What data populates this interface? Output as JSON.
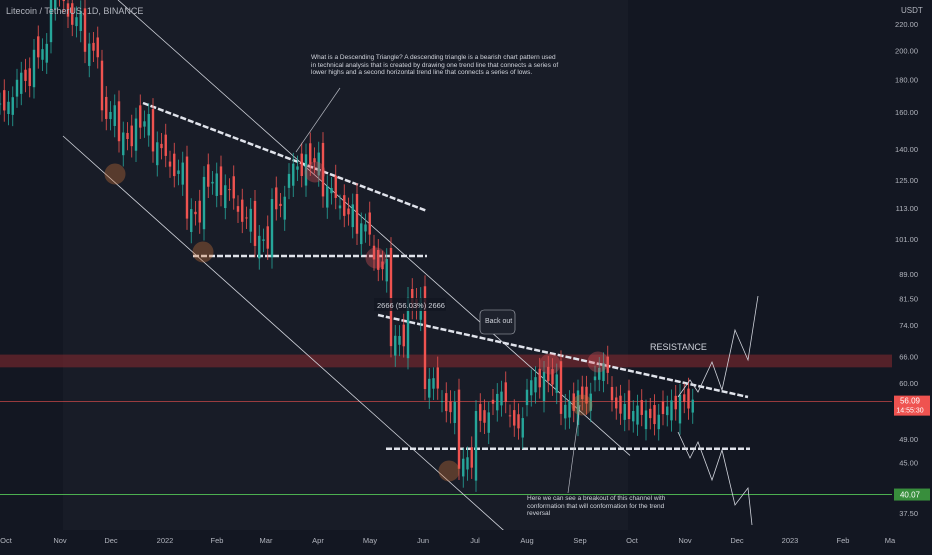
{
  "header": {
    "symbol_title": "Litecoin / TetherUS, 1D, BINANCE",
    "currency": "USDT"
  },
  "chart_data": {
    "type": "line",
    "title": "Litecoin / TetherUS, 1D, BINANCE",
    "xlabel": "",
    "ylabel": "USDT",
    "scale": "log",
    "ylim": [
      35.5,
      240
    ],
    "grid": false,
    "x_ticks": [
      "Oct",
      "Nov",
      "Dec",
      "2022",
      "Feb",
      "Mar",
      "Apr",
      "May",
      "Jun",
      "Jul",
      "Aug",
      "Sep",
      "Oct",
      "Nov",
      "Dec",
      "2023",
      "Feb",
      "Ma"
    ],
    "y_ticks": [
      220.0,
      200.0,
      180.0,
      160.0,
      140.0,
      125.0,
      113.0,
      101.0,
      89.0,
      81.5,
      74.0,
      66.0,
      60.0,
      56.09,
      49.0,
      45.0,
      40.07,
      37.5
    ],
    "series": [
      {
        "type": "candles_approx",
        "points": [
          [
            "Oct",
            165
          ],
          [
            "Oct",
            180
          ],
          [
            "Nov",
            200
          ],
          [
            "Nov",
            245
          ],
          [
            "Nov",
            225
          ],
          [
            "Dec",
            200
          ],
          [
            "Dec",
            160
          ],
          [
            "Dec",
            145
          ],
          [
            "2022",
            155
          ],
          [
            "2022",
            140
          ],
          [
            "2022",
            130
          ],
          [
            "Feb",
            110
          ],
          [
            "Feb",
            125
          ],
          [
            "Feb",
            120
          ],
          [
            "Mar",
            110
          ],
          [
            "Mar",
            100
          ],
          [
            "Mar",
            115
          ],
          [
            "Apr",
            130
          ],
          [
            "Apr",
            135
          ],
          [
            "Apr",
            120
          ],
          [
            "Apr",
            112
          ],
          [
            "May",
            105
          ],
          [
            "May",
            92
          ],
          [
            "May",
            70
          ],
          [
            "May",
            80
          ],
          [
            "Jun",
            60
          ],
          [
            "Jun",
            55
          ],
          [
            "Jun",
            45
          ],
          [
            "Jul",
            53
          ],
          [
            "Jul",
            57
          ],
          [
            "Jul",
            52
          ],
          [
            "Aug",
            60
          ],
          [
            "Aug",
            61
          ],
          [
            "Aug",
            55
          ],
          [
            "Sep",
            57
          ],
          [
            "Sep",
            63
          ],
          [
            "Sep",
            55
          ],
          [
            "Oct",
            54
          ],
          [
            "Oct",
            53
          ],
          [
            "Oct",
            55
          ],
          [
            "Nov",
            56.09
          ]
        ]
      }
    ],
    "price_labels": {
      "current_price": "56.09",
      "countdown": "14:55:30",
      "support_level": "40.07"
    },
    "annotations": {
      "resistance_label": "RESISTANCE",
      "measure_label": "2666 (56.03%) 2666",
      "callout_label": "Back out",
      "top_text": "What is a Descending Triangle? A descending triangle is a bearish chart pattern used in technical analysis that is created by drawing one trend line that connects a series of lower highs and a second horizontal trend line that connects a series of lows.",
      "bottom_text": "Here we can see a breakout of this channel with conformation that will conformation for the trend reversal"
    },
    "colors": {
      "background": "#131722",
      "up": "#26a69a",
      "down": "#ef5350",
      "resistance_zone": "#8b2a30",
      "support_line": "#4caf50",
      "price_line": "#ef5350"
    }
  }
}
